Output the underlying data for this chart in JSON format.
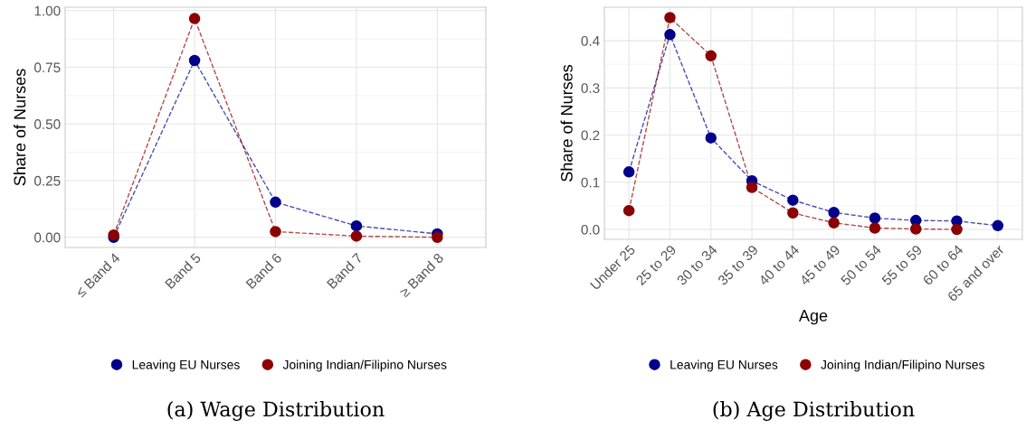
{
  "chart_data": [
    {
      "type": "line",
      "title": "(a) Wage Distribution",
      "ylabel": "Share of Nurses",
      "categories": [
        "≤ Band 4",
        "Band 5",
        "Band 6",
        "Band 7",
        "≥ Band 8"
      ],
      "series": [
        {
          "name": "Leaving EU Nurses",
          "color": "#00008b",
          "values": [
            0.0,
            0.78,
            0.155,
            0.05,
            0.015
          ]
        },
        {
          "name": "Joining Indian/Filipino Nurses",
          "color": "#8b0000",
          "values": [
            0.01,
            0.965,
            0.025,
            0.005,
            0.0
          ]
        }
      ],
      "ylim": [
        -0.045,
        1.015
      ],
      "yticks": [
        {
          "value": 0,
          "label": "0.00"
        },
        {
          "value": 0.25,
          "label": "0.25"
        },
        {
          "value": 0.5,
          "label": "0.50"
        },
        {
          "value": 0.75,
          "label": "0.75"
        },
        {
          "value": 1,
          "label": "1.00"
        }
      ],
      "grid": true,
      "legend": "bottom",
      "marker": "circle",
      "line_style": "dashed"
    },
    {
      "type": "line",
      "title": "(b) Age Distribution",
      "xlabel": "Age",
      "ylabel": "Share of Nurses",
      "categories": [
        "Under 25",
        "25 to 29",
        "30 to 34",
        "35 to 39",
        "40 to 44",
        "45 to 49",
        "50 to 54",
        "55 to 59",
        "60 to 64",
        "65 and over"
      ],
      "series": [
        {
          "name": "Leaving EU Nurses",
          "color": "#00008b",
          "values": [
            0.122,
            0.413,
            0.194,
            0.103,
            0.062,
            0.036,
            0.024,
            0.019,
            0.018,
            0.008
          ]
        },
        {
          "name": "Joining Indian/Filipino Nurses",
          "color": "#8b0000",
          "values": [
            0.04,
            0.449,
            0.368,
            0.089,
            0.035,
            0.014,
            0.003,
            0.001,
            0.0,
            null
          ]
        }
      ],
      "ylim": [
        -0.021,
        0.471
      ],
      "yticks": [
        {
          "value": 0,
          "label": "0.0"
        },
        {
          "value": 0.1,
          "label": "0.1"
        },
        {
          "value": 0.2,
          "label": "0.2"
        },
        {
          "value": 0.3,
          "label": "0.3"
        },
        {
          "value": 0.4,
          "label": "0.4"
        }
      ],
      "grid": true,
      "legend": "bottom",
      "marker": "circle",
      "line_style": "dashed"
    }
  ]
}
